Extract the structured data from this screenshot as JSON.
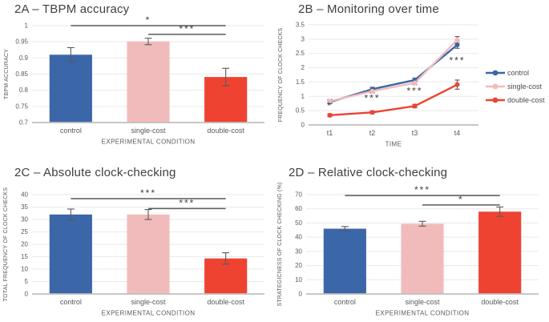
{
  "figure": {
    "background": "#FFFFFF"
  },
  "colors": {
    "series": [
      "#3B66A8",
      "#F2BBBB",
      "#EE4331"
    ],
    "title_text": "#404040",
    "axis_text": "#595959",
    "gridline": "#E9E9E9",
    "axis_line": "#BFBFBF",
    "error_bar": "#595959",
    "sig_line": "#595959",
    "sig_text": "#404040"
  },
  "legend": {
    "items": [
      {
        "label": "control",
        "color": "#3B66A8"
      },
      {
        "label": "single-cost",
        "color": "#F2BBBB"
      },
      {
        "label": "double-cost",
        "color": "#EE4331"
      }
    ]
  },
  "chart_data": [
    {
      "id": "2A",
      "type": "bar",
      "title": "2A – TBPM accuracy",
      "categories": [
        "control",
        "single-cost",
        "double-cost"
      ],
      "values": [
        0.91,
        0.951,
        0.841
      ],
      "errors": [
        0.022,
        0.01,
        0.027
      ],
      "xlabel": "EXPERIMENTAL CONDITION",
      "ylabel": "TBPM ACCURACY",
      "ylim": [
        0.7,
        1.0
      ],
      "yticks": [
        "0.7",
        "0.75",
        "0.8",
        "0.85",
        "0.9",
        "0.95",
        "1"
      ],
      "grid": true,
      "significance": [
        {
          "from": 0,
          "to": 2,
          "label": "*",
          "y": 1.0
        },
        {
          "from": 1,
          "to": 2,
          "label": "***",
          "y": 0.973
        }
      ]
    },
    {
      "id": "2B",
      "type": "line",
      "title": "2B – Monitoring over time",
      "categories": [
        "t1",
        "t2",
        "t3",
        "t4"
      ],
      "series": [
        {
          "name": "control",
          "values": [
            0.8,
            1.25,
            1.57,
            2.8
          ],
          "errors": [
            0.06,
            0.07,
            0.07,
            0.12
          ]
        },
        {
          "name": "single-cost",
          "values": [
            0.83,
            1.18,
            1.47,
            2.97
          ],
          "errors": [
            0.06,
            0.06,
            0.06,
            0.12
          ]
        },
        {
          "name": "double-cost",
          "values": [
            0.34,
            0.44,
            0.66,
            1.41
          ],
          "errors": [
            0.05,
            0.05,
            0.06,
            0.16
          ]
        }
      ],
      "xlabel": "TIME",
      "ylabel": "FREQUENCY OF CLOCK CHECKS",
      "ylim": [
        0,
        3.5
      ],
      "yticks": [
        "0",
        "0.5",
        "1",
        "1.5",
        "2",
        "2.5",
        "3",
        "3.5"
      ],
      "grid": true,
      "legend_position": "right",
      "annotations": [
        {
          "x": 0,
          "y": 0.56,
          "label": "*"
        },
        {
          "x": 1,
          "y": 0.83,
          "label": "***"
        },
        {
          "x": 2,
          "y": 1.08,
          "label": "***"
        },
        {
          "x": 3,
          "y": 2.14,
          "label": "***"
        }
      ]
    },
    {
      "id": "2C",
      "type": "bar",
      "title": "2C – Absolute clock-checking",
      "categories": [
        "control",
        "single-cost",
        "double-cost"
      ],
      "values": [
        32,
        32,
        14.3
      ],
      "errors": [
        2.2,
        2,
        2.3
      ],
      "xlabel": "EXPERIMENTAL CONDITION",
      "ylabel": "TOTAL FREQUENCY OF CLOCK CHECKS",
      "ylim": [
        0,
        40
      ],
      "yticks": [
        "0",
        "5",
        "10",
        "15",
        "20",
        "25",
        "30",
        "35",
        "40"
      ],
      "grid": true,
      "significance": [
        {
          "from": 0,
          "to": 2,
          "label": "***",
          "y": 38.4
        },
        {
          "from": 1,
          "to": 2,
          "label": "***",
          "y": 34.4
        }
      ]
    },
    {
      "id": "2D",
      "type": "bar",
      "title": "2D – Relative clock-checking",
      "categories": [
        "control",
        "single-cost",
        "double-cost"
      ],
      "values": [
        46,
        49.5,
        58
      ],
      "errors": [
        1.5,
        1.7,
        3.3
      ],
      "xlabel": "EXPERIMENTAL CONDITION",
      "ylabel": "STRATEGICNESS OF CLOCK CHECKING (%)",
      "ylim": [
        0,
        70
      ],
      "yticks": [
        "0",
        "10",
        "20",
        "30",
        "40",
        "50",
        "60",
        "70"
      ],
      "grid": true,
      "significance": [
        {
          "from": 0,
          "to": 2,
          "label": "***",
          "y": 69.4
        },
        {
          "from": 1,
          "to": 2,
          "label": "*",
          "y": 62.7
        }
      ]
    }
  ]
}
